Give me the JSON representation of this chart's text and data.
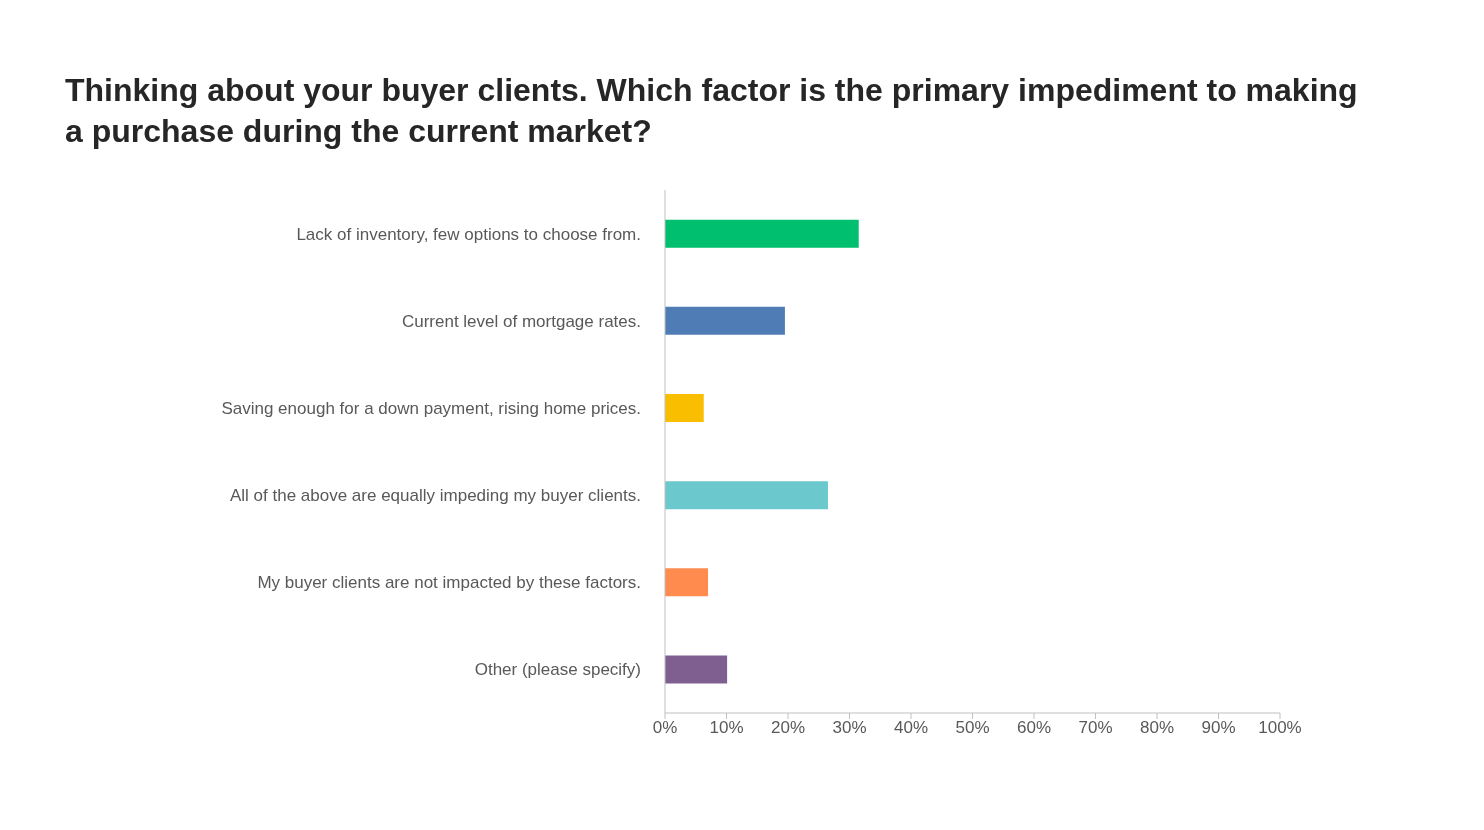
{
  "chart_data": {
    "type": "bar",
    "orientation": "horizontal",
    "title": "Thinking about your buyer clients. Which factor is the primary impediment to making a purchase during the current market?",
    "categories": [
      "Lack of inventory, few options to choose from.",
      "Current level of mortgage rates.",
      "Saving enough for a down payment, rising home prices.",
      "All of the above are equally impeding my buyer clients.",
      "My buyer clients are not impacted by these factors.",
      "Other (please specify)"
    ],
    "values": [
      31.5,
      19.5,
      6.3,
      26.5,
      7.0,
      10.1
    ],
    "colors": [
      "#00bf6f",
      "#507cb6",
      "#f9be00",
      "#6bc8cd",
      "#ff8b4f",
      "#7f5f90"
    ],
    "xlim": [
      0,
      100
    ],
    "xticks": [
      {
        "value": 0,
        "label": "0%"
      },
      {
        "value": 10,
        "label": "10%"
      },
      {
        "value": 20,
        "label": "20%"
      },
      {
        "value": 30,
        "label": "30%"
      },
      {
        "value": 40,
        "label": "40%"
      },
      {
        "value": 50,
        "label": "50%"
      },
      {
        "value": 60,
        "label": "60%"
      },
      {
        "value": 70,
        "label": "70%"
      },
      {
        "value": 80,
        "label": "80%"
      },
      {
        "value": 90,
        "label": "90%"
      },
      {
        "value": 100,
        "label": "100%"
      }
    ]
  }
}
